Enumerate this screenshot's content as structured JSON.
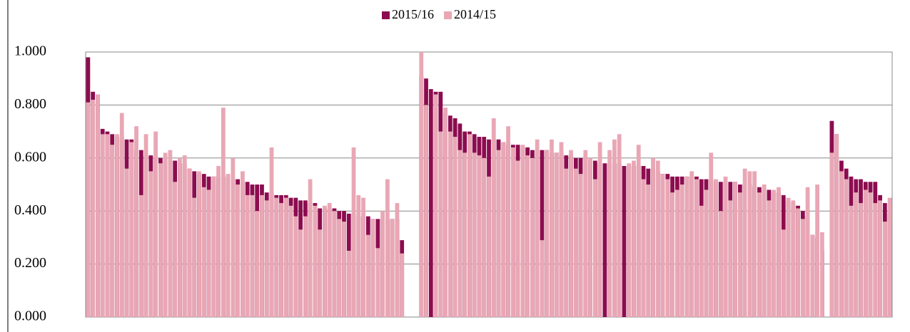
{
  "chart_data": {
    "type": "bar",
    "categories": [
      null,
      null,
      null,
      null,
      null,
      null,
      null,
      null,
      null,
      null,
      null,
      null,
      null,
      null,
      null,
      null,
      null,
      null,
      null,
      null,
      null,
      null,
      null,
      null,
      null,
      null,
      null,
      null,
      null,
      null,
      null,
      null,
      null,
      null,
      null,
      null,
      null,
      null,
      null,
      null,
      null,
      null,
      null,
      null,
      null,
      null,
      null,
      null,
      null,
      null,
      null,
      null,
      null,
      null,
      null,
      null,
      null,
      null,
      null,
      null,
      null,
      null,
      null,
      null,
      null,
      null,
      null,
      null,
      null,
      null,
      null,
      null,
      null,
      null,
      null,
      null,
      null,
      null,
      null,
      null,
      null,
      null,
      null,
      null,
      null,
      null,
      null,
      null,
      null,
      null,
      null,
      null,
      null,
      null,
      null,
      null,
      null,
      null,
      null,
      null,
      null,
      null,
      null,
      null,
      null,
      null,
      null,
      null,
      null,
      null,
      null,
      null,
      null,
      null,
      null,
      null,
      null,
      null,
      null,
      null,
      null,
      null,
      null,
      null,
      null,
      null,
      null,
      null,
      null,
      null,
      null,
      null,
      null,
      null,
      null,
      null,
      null,
      null,
      null,
      null,
      null,
      null,
      null,
      null,
      null,
      null,
      null,
      null,
      null,
      null,
      null,
      null,
      null,
      null,
      null,
      null,
      null,
      null,
      null,
      null,
      null,
      null,
      null,
      null,
      null,
      null,
      null
    ],
    "series": [
      {
        "name": "2015/16",
        "color": "#8c0c4f",
        "values": [
          0.98,
          0.85,
          0.84,
          0.71,
          0.7,
          0.69,
          0.68,
          0.68,
          0.67,
          0.67,
          0.63,
          0.63,
          0.61,
          0.61,
          0.6,
          0.6,
          0.59,
          0.59,
          0.59,
          0.58,
          0.58,
          0.56,
          0.55,
          0.54,
          0.54,
          0.53,
          0.53,
          0.53,
          0.53,
          0.53,
          0.52,
          0.52,
          0.51,
          0.51,
          0.5,
          0.5,
          0.5,
          0.47,
          0.47,
          0.46,
          0.46,
          0.46,
          0.45,
          0.45,
          0.44,
          0.44,
          0.43,
          0.43,
          0.41,
          0.41,
          0.41,
          0.41,
          0.4,
          0.4,
          0.39,
          0.39,
          0.38,
          0.38,
          0.38,
          0.37,
          0.37,
          0.37,
          0.37,
          0.37,
          0.37,
          0.29,
          null,
          null,
          null,
          0.91,
          0.9,
          0.86,
          0.85,
          0.85,
          0.77,
          0.76,
          0.75,
          0.73,
          0.7,
          0.7,
          0.69,
          0.68,
          0.68,
          0.67,
          0.67,
          0.67,
          0.66,
          0.65,
          0.65,
          0.65,
          0.64,
          0.64,
          0.63,
          0.63,
          0.63,
          0.63,
          0.62,
          0.62,
          0.62,
          0.61,
          0.61,
          0.6,
          0.6,
          0.6,
          0.59,
          0.59,
          0.58,
          0.58,
          0.58,
          0.58,
          0.58,
          0.57,
          0.57,
          0.57,
          0.57,
          0.57,
          0.56,
          0.56,
          0.55,
          0.54,
          0.54,
          0.53,
          0.53,
          0.53,
          0.53,
          0.53,
          0.53,
          0.52,
          0.52,
          0.52,
          0.51,
          0.51,
          0.51,
          0.51,
          0.51,
          0.5,
          0.5,
          0.5,
          0.49,
          0.49,
          0.48,
          0.48,
          0.47,
          0.47,
          0.46,
          0.44,
          0.43,
          0.42,
          0.4,
          0.38,
          0.31,
          0.3,
          0.25,
          null,
          0.74,
          0.69,
          0.59,
          0.56,
          0.53,
          0.52,
          0.52,
          0.51,
          0.51,
          0.51,
          0.46,
          0.43,
          0.39
        ]
      },
      {
        "name": "2014/15",
        "color": "#e9a7b5",
        "values": [
          0.81,
          0.82,
          0.84,
          0.69,
          0.69,
          0.65,
          0.69,
          0.77,
          0.56,
          0.66,
          0.72,
          0.46,
          0.69,
          0.55,
          0.7,
          0.58,
          0.62,
          0.63,
          0.51,
          0.6,
          0.61,
          0.56,
          0.45,
          0.55,
          0.49,
          0.48,
          0.53,
          0.57,
          0.79,
          0.54,
          0.6,
          0.5,
          0.55,
          0.46,
          0.46,
          0.4,
          0.46,
          0.44,
          0.64,
          0.45,
          0.43,
          0.45,
          0.42,
          0.38,
          0.33,
          0.38,
          0.52,
          0.42,
          0.33,
          0.42,
          0.43,
          0.4,
          0.37,
          0.36,
          0.25,
          0.64,
          0.46,
          0.45,
          0.31,
          0.37,
          0.26,
          0.4,
          0.52,
          0.37,
          0.43,
          0.24,
          null,
          null,
          null,
          1.0,
          0.8,
          0,
          0.84,
          0.7,
          0.79,
          0.7,
          0.68,
          0.63,
          0.62,
          0.69,
          0.62,
          0.61,
          0.6,
          0.53,
          0.75,
          0.63,
          0.66,
          0.72,
          0.64,
          0.59,
          0.65,
          0.61,
          0.6,
          0.67,
          0.29,
          0.63,
          0.67,
          0.62,
          0.66,
          0.56,
          0.63,
          0.56,
          0.54,
          0.63,
          0.6,
          0.52,
          0.66,
          0,
          0.63,
          0.67,
          0.69,
          0,
          0.58,
          0.59,
          0.65,
          0.52,
          0.5,
          0.6,
          0.59,
          0.54,
          0.52,
          0.47,
          0.48,
          0.5,
          0.53,
          0.55,
          0.52,
          0.42,
          0.48,
          0.62,
          0.52,
          0.4,
          0.53,
          0.44,
          0.51,
          0.47,
          0.56,
          0.55,
          0.55,
          0.47,
          0.5,
          0.44,
          0.48,
          0.49,
          0.33,
          0.45,
          0.44,
          0.41,
          0.37,
          0.49,
          0.31,
          0.5,
          0.32,
          null,
          0.62,
          0.69,
          0.55,
          0.52,
          0.42,
          0.47,
          0.43,
          0.48,
          0.47,
          0.43,
          0.44,
          0.36,
          0.45
        ]
      }
    ],
    "ylim": [
      0,
      1
    ],
    "yticks": [
      {
        "value": 0,
        "label": "0.000"
      },
      {
        "value": 0.2,
        "label": "0.200"
      },
      {
        "value": 0.4,
        "label": "0.400"
      },
      {
        "value": 0.6,
        "label": "0.600"
      },
      {
        "value": 0.8,
        "label": "0.800"
      },
      {
        "value": 1,
        "label": "1.000"
      }
    ],
    "grid": true,
    "legend": "top"
  }
}
